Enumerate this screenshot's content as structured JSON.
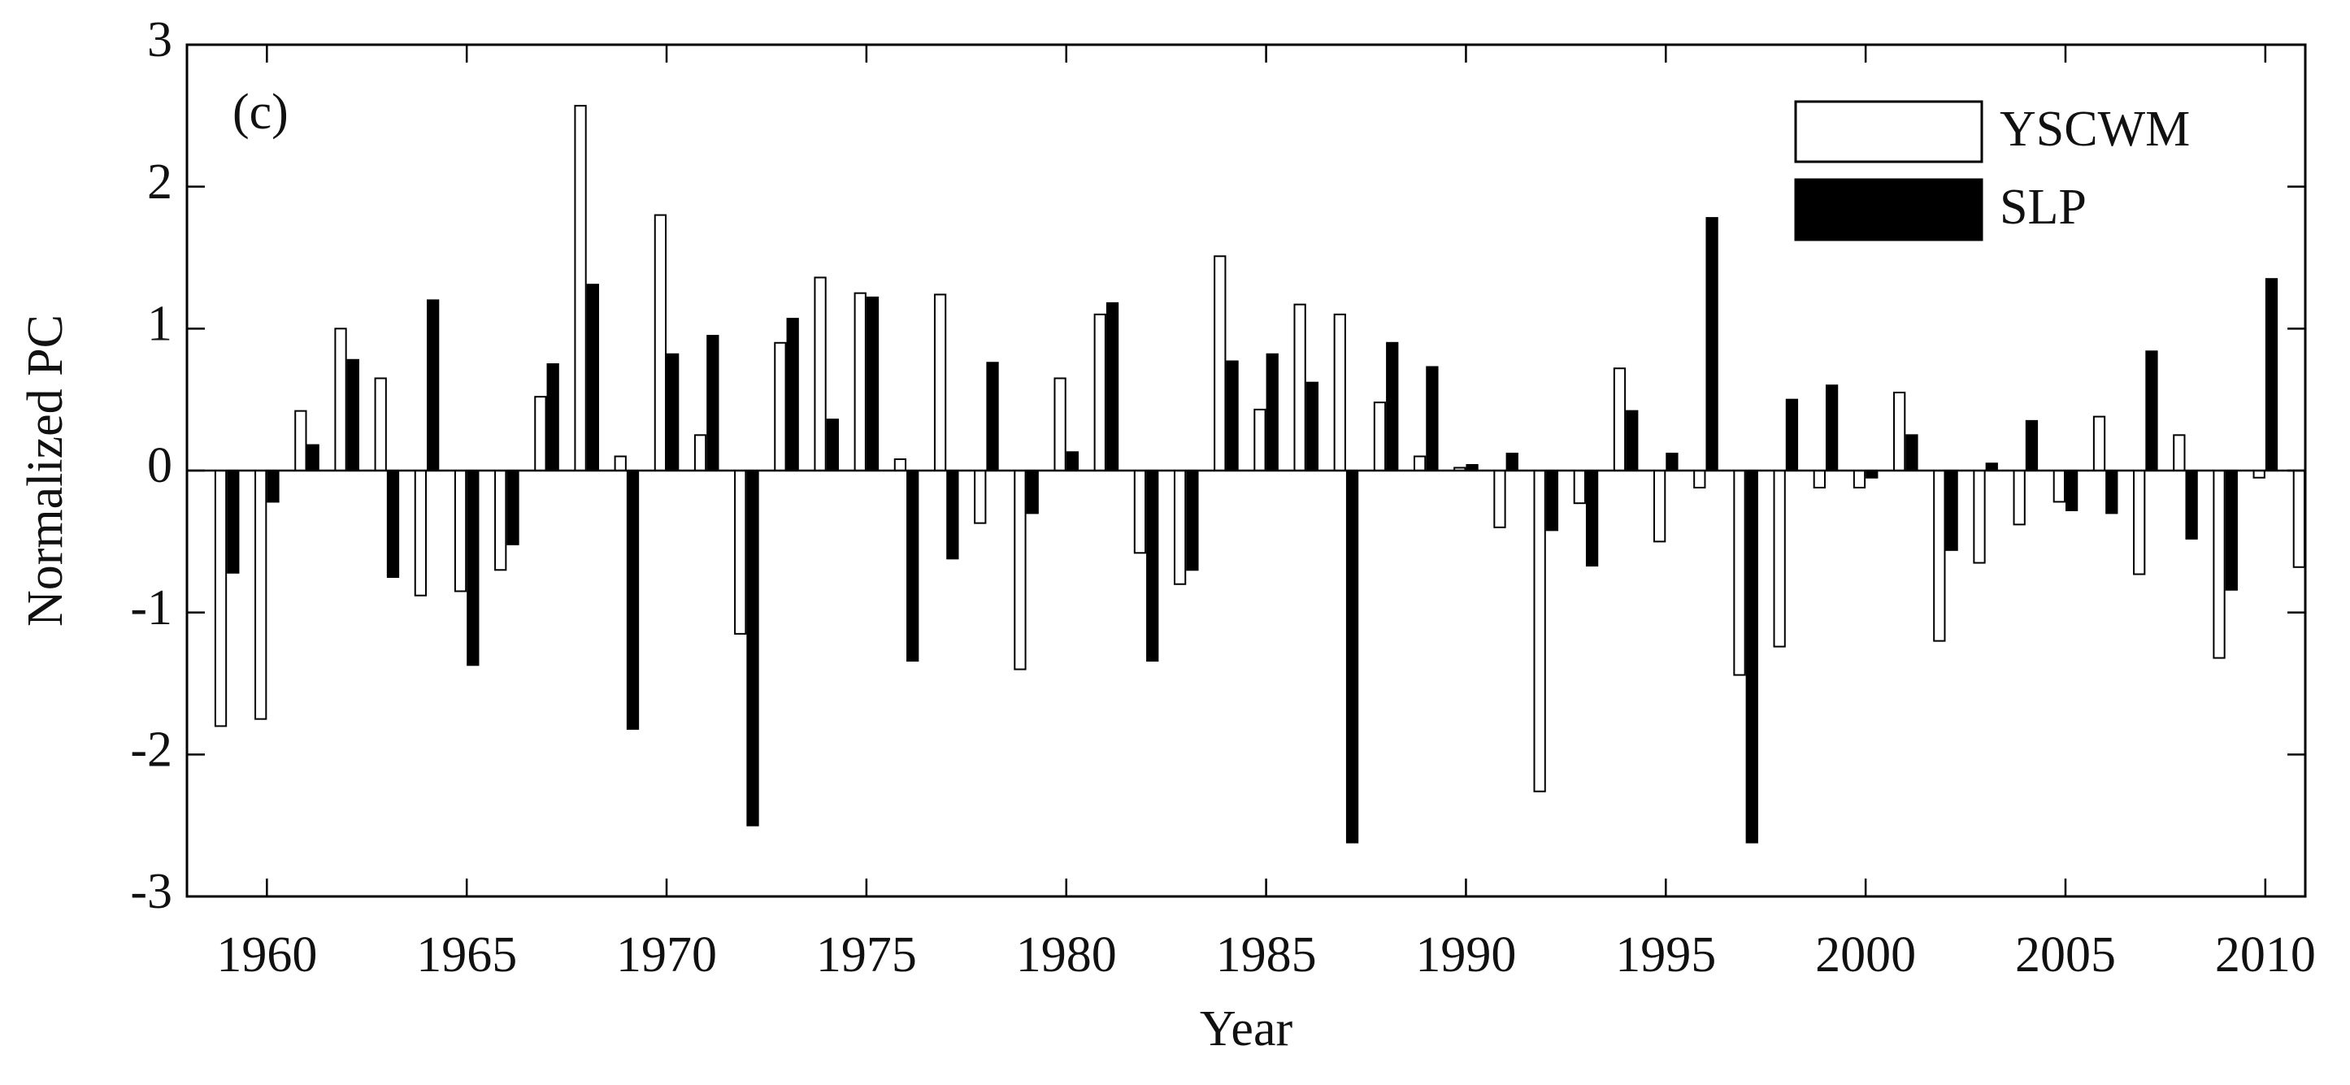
{
  "chart_data": {
    "type": "bar",
    "title": "(c)",
    "x_label": "Year",
    "y_label": "Normalized PC",
    "x": [
      1959,
      1960,
      1961,
      1962,
      1963,
      1964,
      1965,
      1966,
      1967,
      1968,
      1969,
      1970,
      1971,
      1972,
      1973,
      1974,
      1975,
      1976,
      1977,
      1978,
      1979,
      1980,
      1981,
      1982,
      1983,
      1984,
      1985,
      1986,
      1987,
      1988,
      1989,
      1990,
      1991,
      1992,
      1993,
      1994,
      1995,
      1996,
      1997,
      1998,
      1999,
      2000,
      2001,
      2002,
      2003,
      2004,
      2005,
      2006,
      2007,
      2008,
      2009,
      2010,
      2011
    ],
    "series": [
      {
        "name": "YSCWM",
        "color": "#ffffff",
        "edge": "#000000",
        "values": [
          -1.8,
          -1.75,
          0.42,
          1.0,
          0.65,
          -0.88,
          -0.85,
          -0.7,
          0.52,
          2.57,
          0.1,
          1.8,
          0.25,
          -1.15,
          0.9,
          1.36,
          1.25,
          0.08,
          1.24,
          -0.37,
          -1.4,
          0.65,
          1.1,
          -0.58,
          -0.8,
          1.51,
          0.43,
          1.17,
          1.1,
          0.48,
          0.1,
          0.02,
          -0.4,
          -2.26,
          -0.23,
          0.72,
          -0.5,
          -0.12,
          -1.44,
          -1.24,
          -0.12,
          -0.12,
          0.55,
          -1.2,
          -0.65,
          -0.38,
          -0.22,
          0.38,
          -0.73,
          0.25,
          -1.32,
          -0.05,
          -0.68
        ]
      },
      {
        "name": "SLP",
        "color": "#000000",
        "edge": "#000000",
        "values": [
          -0.72,
          -0.22,
          0.18,
          0.78,
          -0.75,
          1.2,
          -1.37,
          -0.52,
          0.75,
          1.31,
          -1.82,
          0.82,
          0.95,
          -2.5,
          1.07,
          0.36,
          1.22,
          -1.34,
          -0.62,
          0.76,
          -0.3,
          0.13,
          1.18,
          -1.34,
          -0.7,
          0.77,
          0.82,
          0.62,
          -2.62,
          0.9,
          0.73,
          0.04,
          0.12,
          -0.42,
          -0.67,
          0.42,
          0.12,
          1.78,
          -2.62,
          0.5,
          0.6,
          -0.05,
          0.25,
          -0.56,
          0.05,
          0.35,
          -0.28,
          -0.3,
          0.84,
          -0.48,
          -0.84,
          1.35,
          null
        ]
      }
    ],
    "xlim": [
      1958,
      2011
    ],
    "xticks": [
      1960,
      1965,
      1970,
      1975,
      1980,
      1985,
      1990,
      1995,
      2000,
      2005,
      2010
    ],
    "ylim": [
      -3,
      3
    ],
    "yticks": [
      -3,
      -2,
      -1,
      0,
      1,
      2,
      3
    ],
    "legend": "upper right",
    "grid": false
  }
}
